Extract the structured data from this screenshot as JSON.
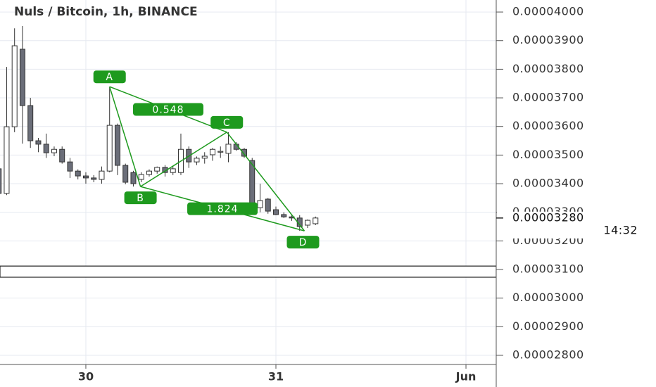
{
  "chart_data": {
    "type": "candlestick",
    "title": "Nuls / Bitcoin, 1h, BINANCE",
    "x": [
      -11,
      -10,
      -9,
      -8,
      -7,
      -6,
      -5,
      -4,
      -3,
      -2,
      -1,
      0,
      1,
      2,
      3,
      4,
      5,
      6,
      7,
      8,
      9,
      10,
      11,
      12,
      13,
      14,
      15,
      16,
      17,
      18,
      19,
      20,
      21,
      22,
      23,
      24,
      25,
      26,
      27,
      28,
      29
    ],
    "open": [
      3.452e-05,
      3.366e-05,
      3.599e-05,
      3.87e-05,
      3.673e-05,
      3.55e-05,
      3.538e-05,
      3.508e-05,
      3.52e-05,
      3.476e-05,
      3.444e-05,
      3.427e-05,
      3.42e-05,
      3.415e-05,
      3.444e-05,
      3.604e-05,
      3.464e-05,
      3.439e-05,
      3.415e-05,
      3.432e-05,
      3.444e-05,
      3.457e-05,
      3.439e-05,
      3.439e-05,
      3.52e-05,
      3.476e-05,
      3.489e-05,
      3.501e-05,
      3.51e-05,
      3.506e-05,
      3.538e-05,
      3.52e-05,
      3.481e-05,
      3.316e-05,
      3.346e-05,
      3.309e-05,
      3.292e-05,
      3.284e-05,
      3.28e-05,
      3.255e-05,
      3.26e-05
    ],
    "high": [
      3.47e-05,
      3.808e-05,
      3.943e-05,
      3.951e-05,
      3.7e-05,
      3.56e-05,
      3.575e-05,
      3.53e-05,
      3.53e-05,
      3.49e-05,
      3.45e-05,
      3.44e-05,
      3.43e-05,
      3.46e-05,
      3.739e-05,
      3.61e-05,
      3.47e-05,
      3.445e-05,
      3.44e-05,
      3.45e-05,
      3.46e-05,
      3.465e-05,
      3.46e-05,
      3.575e-05,
      3.53e-05,
      3.495e-05,
      3.51e-05,
      3.525e-05,
      3.53e-05,
      3.58e-05,
      3.545e-05,
      3.525e-05,
      3.49e-05,
      3.4e-05,
      3.35e-05,
      3.32e-05,
      3.3e-05,
      3.29e-05,
      3.29e-05,
      3.275e-05,
      3.285e-05
    ],
    "low": [
      3.3e-05,
      3.36e-05,
      3.58e-05,
      3.54e-05,
      3.525e-05,
      3.51e-05,
      3.49e-05,
      3.496e-05,
      3.47e-05,
      3.42e-05,
      3.415e-05,
      3.4e-05,
      3.405e-05,
      3.4e-05,
      3.44e-05,
      3.43e-05,
      3.398e-05,
      3.39e-05,
      3.405e-05,
      3.425e-05,
      3.435e-05,
      3.425e-05,
      3.43e-05,
      3.43e-05,
      3.455e-05,
      3.465e-05,
      3.47e-05,
      3.48e-05,
      3.49e-05,
      3.475e-05,
      3.515e-05,
      3.49e-05,
      3.3e-05,
      3.3e-05,
      3.295e-05,
      3.29e-05,
      3.28e-05,
      3.27e-05,
      3.235e-05,
      3.245e-05,
      3.255e-05
    ],
    "close": [
      3.366e-05,
      3.599e-05,
      3.882e-05,
      3.673e-05,
      3.55e-05,
      3.538e-05,
      3.508e-05,
      3.52e-05,
      3.476e-05,
      3.444e-05,
      3.427e-05,
      3.42e-05,
      3.415e-05,
      3.444e-05,
      3.604e-05,
      3.464e-05,
      3.405e-05,
      3.4e-05,
      3.432e-05,
      3.444e-05,
      3.457e-05,
      3.439e-05,
      3.452e-05,
      3.52e-05,
      3.476e-05,
      3.489e-05,
      3.496e-05,
      3.52e-05,
      3.513e-05,
      3.538e-05,
      3.52e-05,
      3.496e-05,
      3.316e-05,
      3.341e-05,
      3.304e-05,
      3.292e-05,
      3.284e-05,
      3.28e-05,
      3.25e-05,
      3.272e-05,
      3.28e-05
    ],
    "up_color": "#ffffff",
    "down_color": "#6b6e79",
    "xlim": [
      -10.84,
      51.82
    ],
    "xticks": [
      {
        "value": 0,
        "label": "30"
      },
      {
        "value": 24,
        "label": "31"
      },
      {
        "value": 48,
        "label": "Jun"
      }
    ],
    "ylim": [
      2.768e-05,
      4.042e-05
    ],
    "yticks": [
      {
        "value": 2.8e-05,
        "label": "0.00002800"
      },
      {
        "value": 2.9e-05,
        "label": "0.00002900"
      },
      {
        "value": 3e-05,
        "label": "0.00003000"
      },
      {
        "value": 3.1e-05,
        "label": "0.00003100"
      },
      {
        "value": 3.2e-05,
        "label": "0.00003200"
      },
      {
        "value": 3.3e-05,
        "label": "0.00003300"
      },
      {
        "value": 3.4e-05,
        "label": "0.00003400"
      },
      {
        "value": 3.5e-05,
        "label": "0.00003500"
      },
      {
        "value": 3.6e-05,
        "label": "0.00003600"
      },
      {
        "value": 3.7e-05,
        "label": "0.00003700"
      },
      {
        "value": 3.8e-05,
        "label": "0.00003800"
      },
      {
        "value": 3.9e-05,
        "label": "0.00003900"
      },
      {
        "value": 4e-05,
        "label": "0.00004000"
      }
    ],
    "grid": true,
    "range_box": [
      3.073e-05,
      3.112e-05
    ],
    "last_price": {
      "value": 3.28e-05,
      "label": "0.00003280"
    },
    "countdown": "14:32",
    "pattern": {
      "color": "#1e9a1e",
      "points": [
        {
          "label": "A",
          "x": 3,
          "y": 3.739e-05
        },
        {
          "label": "B",
          "x": 6.9,
          "y": 3.39e-05
        },
        {
          "label": "C",
          "x": 17.8,
          "y": 3.58e-05
        },
        {
          "label": "D",
          "x": 27.6,
          "y": 3.235e-05
        }
      ],
      "ratios": [
        0.548,
        1.824
      ]
    }
  }
}
